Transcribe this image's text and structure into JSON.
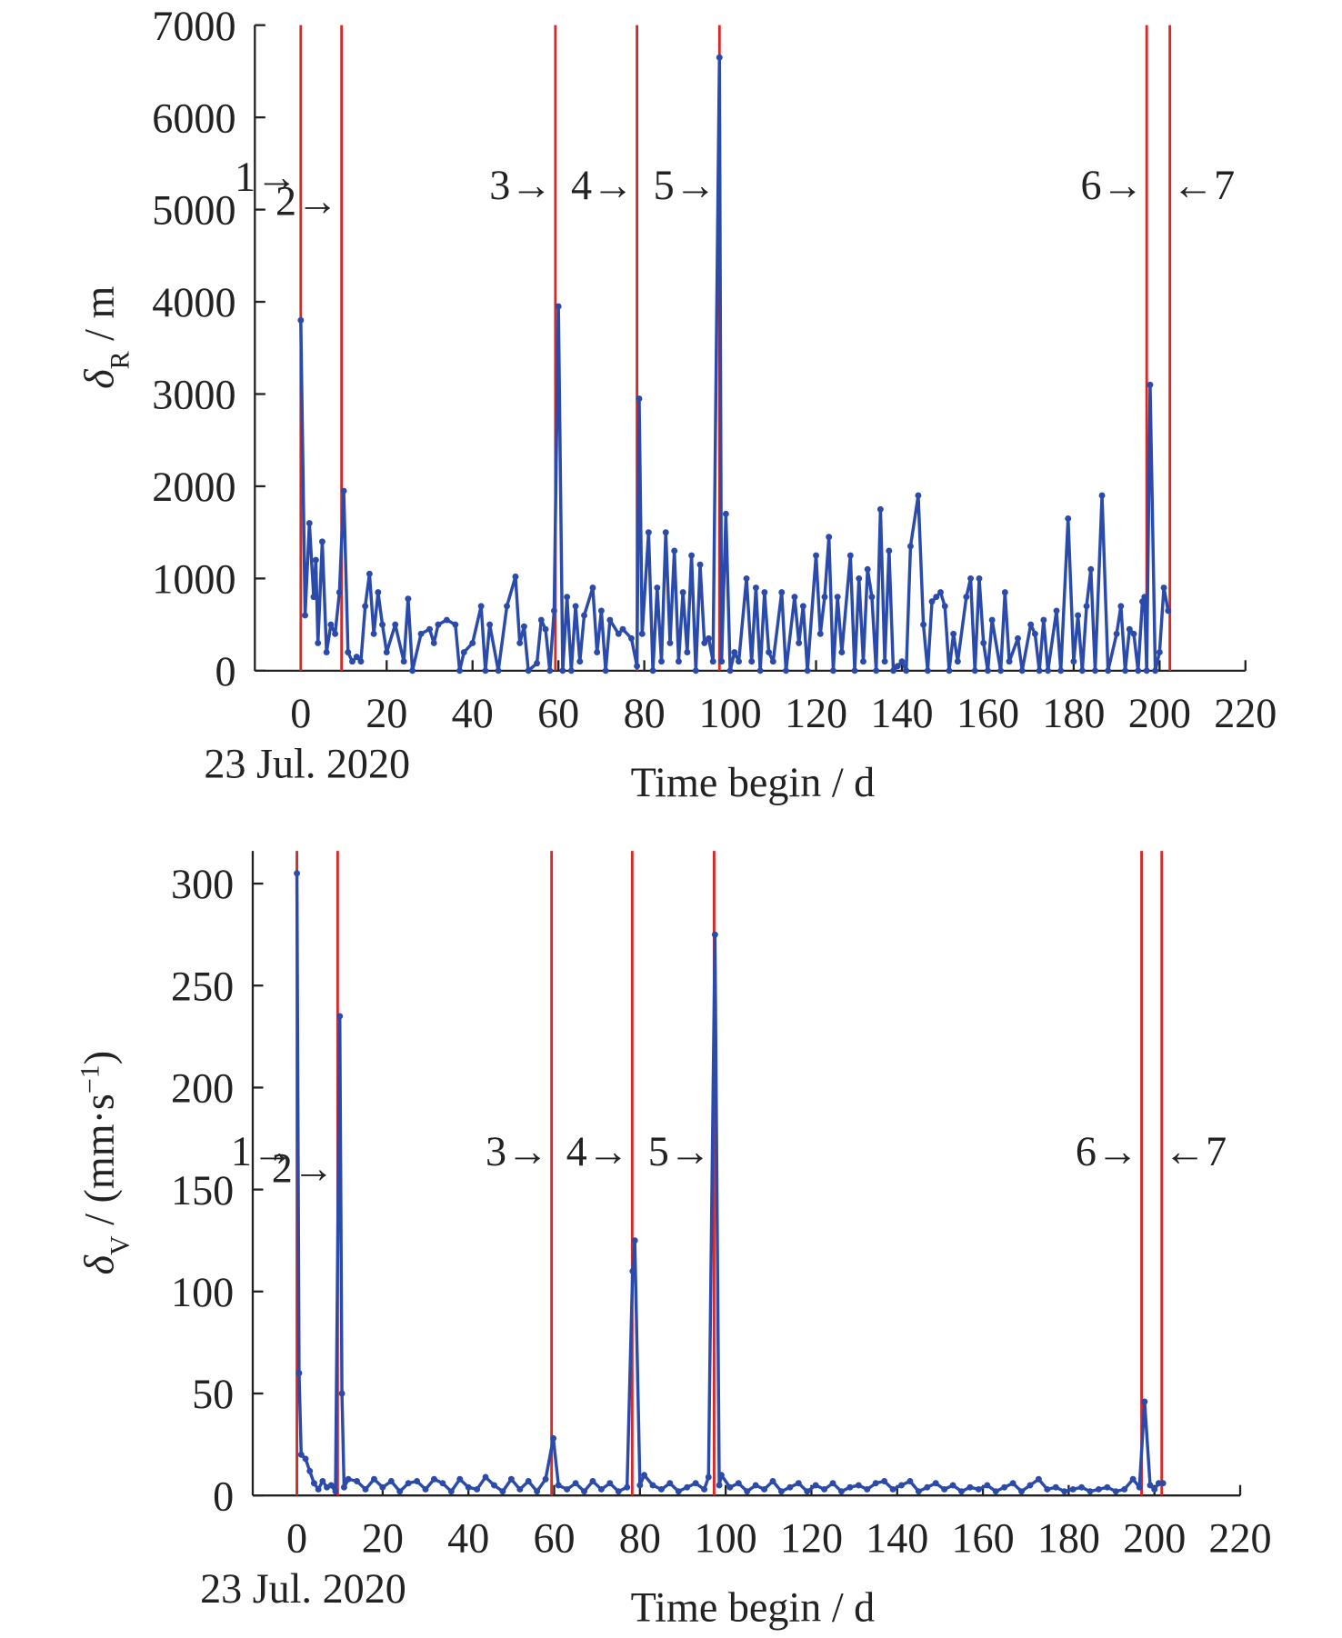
{
  "chart_data": [
    {
      "type": "line",
      "x_label": "Time begin / d",
      "date_label": "23 Jul. 2020",
      "y_label_parts": [
        "δ",
        "R",
        " / m"
      ],
      "xlim": [
        -10.7,
        220
      ],
      "xticks": [
        0,
        20,
        40,
        60,
        80,
        100,
        120,
        140,
        160,
        180,
        200,
        220
      ],
      "ylim": [
        0,
        7000
      ],
      "yticks": [
        0,
        1000,
        2000,
        3000,
        4000,
        5000,
        6000,
        7000
      ],
      "series": [
        {
          "color": "#2a4bab",
          "x": [
            0,
            1,
            2,
            3,
            3.5,
            4,
            5,
            6,
            7,
            8,
            9,
            10,
            11,
            12,
            13,
            14,
            15,
            16,
            17,
            18,
            19,
            20,
            22,
            24,
            25,
            26,
            28,
            30,
            31,
            32,
            34,
            36,
            37,
            38,
            40,
            42,
            43,
            44,
            46,
            48,
            50,
            51,
            52,
            53,
            55,
            56,
            57,
            58,
            59,
            60,
            61,
            62,
            63,
            64,
            65,
            66,
            68,
            69,
            70,
            71,
            72,
            74,
            75,
            77,
            78.3,
            78.8,
            79.5,
            81,
            82,
            83,
            84,
            85,
            86,
            87,
            88,
            89,
            90,
            91,
            92,
            93,
            94,
            95,
            96,
            97.5,
            98,
            99,
            100,
            101,
            102,
            103.8,
            105,
            106,
            107,
            108,
            109,
            110,
            112,
            113,
            115,
            116,
            117,
            118,
            120,
            121,
            122,
            123,
            124,
            125,
            126,
            128,
            129,
            130,
            131,
            132,
            133,
            134,
            135,
            136,
            137,
            138,
            139,
            140,
            141,
            142,
            143.8,
            145,
            146,
            147,
            148,
            149,
            150,
            151,
            152,
            153,
            155,
            156,
            157,
            158,
            159,
            160,
            161,
            163,
            164,
            165,
            167,
            168,
            170,
            171,
            172,
            173,
            174,
            176,
            177,
            178.7,
            180,
            181,
            182,
            183,
            184,
            185,
            186.6,
            188,
            190,
            191,
            192,
            193,
            194,
            195,
            196,
            196.5,
            197,
            197.8,
            199,
            200,
            201,
            202
          ],
          "values": [
            3800,
            600,
            1600,
            800,
            1200,
            300,
            1400,
            200,
            500,
            400,
            850,
            1950,
            200,
            100,
            150,
            100,
            700,
            1050,
            400,
            850,
            500,
            200,
            500,
            100,
            780,
            0,
            400,
            450,
            300,
            500,
            550,
            500,
            0,
            200,
            300,
            700,
            0,
            500,
            0,
            700,
            1020,
            300,
            480,
            0,
            80,
            550,
            450,
            0,
            650,
            3950,
            0,
            800,
            0,
            700,
            100,
            600,
            900,
            200,
            650,
            0,
            550,
            400,
            450,
            350,
            50,
            2950,
            400,
            1500,
            0,
            900,
            100,
            1500,
            300,
            1300,
            100,
            850,
            200,
            1250,
            0,
            1150,
            300,
            350,
            100,
            6650,
            100,
            1700,
            0,
            200,
            100,
            1000,
            100,
            900,
            0,
            850,
            200,
            100,
            850,
            0,
            800,
            300,
            700,
            0,
            1250,
            400,
            800,
            1450,
            0,
            800,
            200,
            1250,
            0,
            1000,
            100,
            1100,
            800,
            0,
            1750,
            100,
            1300,
            0,
            50,
            100,
            0,
            1350,
            1900,
            500,
            0,
            750,
            800,
            850,
            700,
            0,
            400,
            100,
            800,
            1000,
            0,
            1000,
            300,
            0,
            550,
            0,
            850,
            100,
            350,
            0,
            500,
            400,
            0,
            550,
            0,
            650,
            0,
            1650,
            100,
            600,
            0,
            700,
            1100,
            0,
            1900,
            0,
            400,
            700,
            0,
            450,
            400,
            0,
            750,
            800,
            0,
            3100,
            0,
            200,
            900,
            650
          ]
        }
      ],
      "events": {
        "color": "#d42a2a",
        "x": [
          0,
          9.5,
          59.3,
          78.3,
          97.5,
          197,
          202.4
        ],
        "labels": [
          "1→",
          "2→",
          "3→",
          "4→",
          "5→",
          "6→",
          "←7"
        ]
      }
    },
    {
      "type": "line",
      "x_label": "Time begin / d",
      "date_label": "23 Jul. 2020",
      "y_label_parts": [
        "δ",
        "V",
        " / (mm·s",
        "−1",
        ")"
      ],
      "xlim": [
        -10.3,
        220
      ],
      "xticks": [
        0,
        20,
        40,
        60,
        80,
        100,
        120,
        140,
        160,
        180,
        200,
        220
      ],
      "ylim": [
        0,
        316
      ],
      "yticks": [
        0,
        50,
        100,
        150,
        200,
        250,
        300
      ],
      "series": [
        {
          "color": "#2a4bab",
          "x": [
            0,
            0.5,
            1,
            2,
            3,
            4,
            5,
            6,
            7,
            8,
            9,
            10,
            10.5,
            11,
            12,
            14,
            16,
            18,
            20,
            22,
            24,
            26,
            28,
            30,
            32,
            34,
            36,
            38,
            40,
            42,
            44,
            46,
            48,
            50,
            52,
            54,
            56,
            58,
            59.8,
            61,
            63,
            65,
            67,
            69,
            71,
            73,
            75,
            77,
            78.3,
            78.8,
            80,
            81,
            83,
            85,
            87,
            89,
            91,
            93,
            95,
            96,
            97.5,
            98.5,
            99,
            101,
            103,
            105,
            107,
            109,
            111,
            113,
            115,
            117,
            119,
            121,
            123,
            125,
            127,
            129,
            131,
            133,
            135,
            137,
            139,
            141,
            143,
            145,
            147,
            149,
            151,
            153,
            155,
            157,
            159,
            161,
            163,
            165,
            167,
            169,
            171,
            173,
            175,
            177,
            179,
            181,
            183,
            185,
            187,
            189,
            191,
            193,
            195,
            196.5,
            197.7,
            199,
            200,
            201,
            202
          ],
          "values": [
            305,
            60,
            20,
            18,
            12,
            6,
            3,
            7,
            4,
            5,
            2,
            235,
            50,
            4,
            8,
            7,
            3,
            8,
            4,
            7,
            2,
            6,
            7,
            3,
            8,
            6,
            2,
            8,
            4,
            3,
            9,
            5,
            2,
            8,
            3,
            7,
            2,
            8,
            28,
            5,
            3,
            6,
            2,
            7,
            3,
            6,
            2,
            4,
            110,
            125,
            5,
            10,
            5,
            3,
            6,
            2,
            4,
            6,
            3,
            9,
            275,
            5,
            10,
            4,
            6,
            2,
            5,
            3,
            7,
            2,
            4,
            6,
            2,
            5,
            3,
            6,
            2,
            4,
            5,
            3,
            6,
            7,
            3,
            5,
            7,
            2,
            4,
            6,
            3,
            5,
            2,
            4,
            3,
            5,
            2,
            4,
            6,
            2,
            5,
            8,
            3,
            4,
            2,
            3,
            4,
            2,
            3,
            4,
            2,
            3,
            8,
            4,
            46,
            5,
            3,
            6,
            6
          ]
        }
      ],
      "events": {
        "color": "#d42a2a",
        "x": [
          0,
          9.5,
          59.4,
          78.2,
          97.3,
          197,
          201.7
        ],
        "labels": [
          "1→",
          "2→",
          "3→",
          "4→",
          "5→",
          "6→",
          "←7"
        ]
      }
    }
  ]
}
